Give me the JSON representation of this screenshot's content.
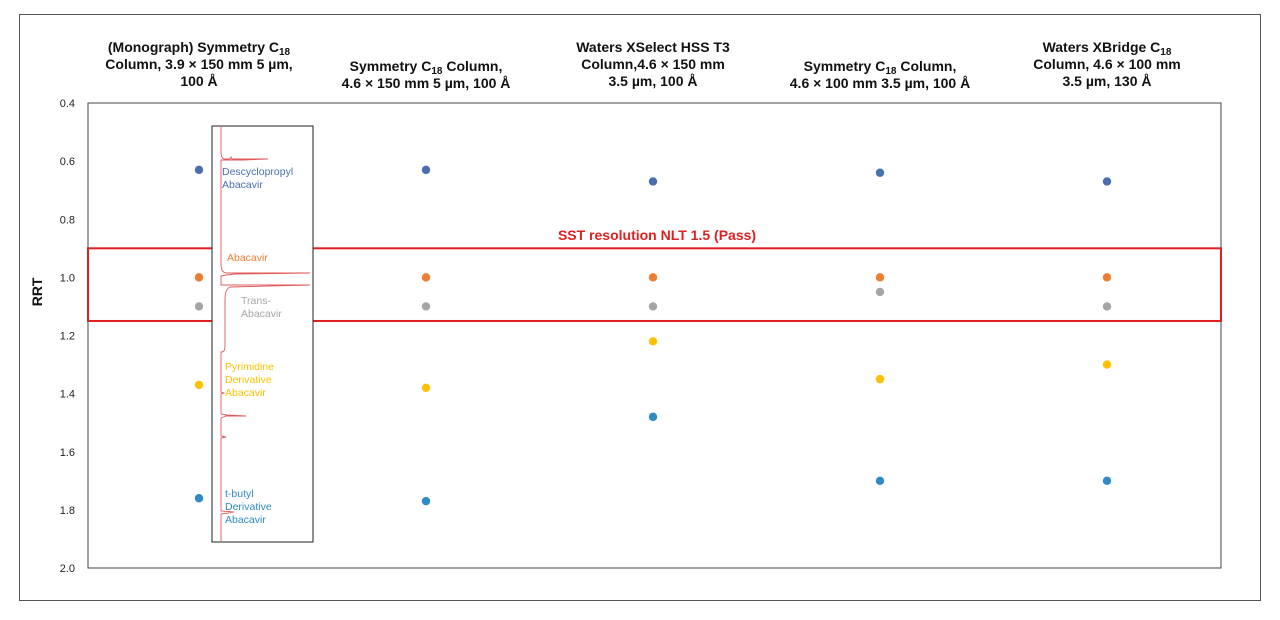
{
  "chart_data": {
    "type": "scatter",
    "ylabel": "RRT",
    "ylim": [
      0.4,
      2.0
    ],
    "y_inverted": true,
    "yticks": [
      "0.4",
      "0.6",
      "0.8",
      "1.0",
      "1.2",
      "1.4",
      "1.6",
      "1.8",
      "2.0"
    ],
    "columns": [
      {
        "line1_pre": "(Monograph) Symmetry C",
        "line1_sub": "18",
        "line1_post": "",
        "line2": "Column, 3.9 × 150 mm 5 µm,",
        "line3": "100 Å"
      },
      {
        "line1_pre": "Symmetry C",
        "line1_sub": "18",
        "line1_post": " Column,",
        "line2": "4.6 × 150 mm 5 µm, 100 Å",
        "line3": ""
      },
      {
        "line1_pre": "Waters XSelect HSS T3",
        "line1_sub": "",
        "line1_post": "",
        "line2": "Column,4.6 × 150 mm",
        "line3": "3.5 µm, 100 Å"
      },
      {
        "line1_pre": "Symmetry C",
        "line1_sub": "18",
        "line1_post": " Column,",
        "line2": "4.6 × 100 mm 3.5 µm, 100 Å",
        "line3": ""
      },
      {
        "line1_pre": "Waters XBridge C",
        "line1_sub": "18",
        "line1_post": "",
        "line2": "Column, 4.6 × 100 mm",
        "line3": "3.5 µm, 130 Å"
      }
    ],
    "series": [
      {
        "color": "#4a6fb0",
        "values": [
          0.63,
          0.63,
          0.67,
          0.64,
          0.67
        ]
      },
      {
        "color": "#ed7d31",
        "values": [
          1.0,
          1.0,
          1.0,
          1.0,
          1.0
        ]
      },
      {
        "color": "#a5a5a5",
        "values": [
          1.1,
          1.1,
          1.1,
          1.05,
          1.1
        ]
      },
      {
        "color": "#ffc000",
        "values": [
          1.37,
          1.38,
          1.22,
          1.35,
          1.3
        ]
      },
      {
        "color": "#2e8bc6",
        "values": [
          1.76,
          1.77,
          1.48,
          1.7,
          1.7
        ]
      }
    ],
    "sst_label": "SST resolution NLT 1.5 (Pass)",
    "sst_range": [
      0.9,
      1.15
    ],
    "annotations": [
      {
        "lines": [
          "Descyclopropyl",
          "Abacavir"
        ],
        "color": "#4a6fb0"
      },
      {
        "lines": [
          "Abacavir"
        ],
        "color": "#ed7d31"
      },
      {
        "lines": [
          "Trans-",
          "Abacavir"
        ],
        "color": "#a5a5a5"
      },
      {
        "lines": [
          "Pyrimidine",
          "Derivative",
          "Abacavir"
        ],
        "color": "#ffc000"
      },
      {
        "lines": [
          "t-butyl",
          "Derivative",
          "Abacavir"
        ],
        "color": "#2e8bc6"
      }
    ],
    "grid": false,
    "legend": "none"
  }
}
